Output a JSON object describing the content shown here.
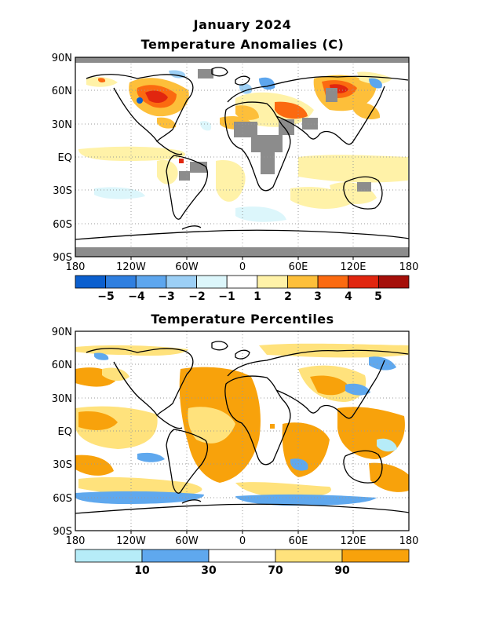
{
  "maps": [
    {
      "title_line1": "January 2024",
      "title_line2": "Temperature Anomalies (C)",
      "lat_labels": [
        "90N",
        "60N",
        "30N",
        "EQ",
        "30S",
        "60S",
        "90S"
      ],
      "lon_labels": [
        "180",
        "120W",
        "60W",
        "0",
        "60E",
        "120E",
        "180"
      ],
      "legend": {
        "colors": [
          "#0b5fce",
          "#2f7fe0",
          "#5da6ee",
          "#9ccff5",
          "#dcf6fb",
          "#ffffff",
          "#fff2a8",
          "#fdbf3a",
          "#fb6a10",
          "#e1260f",
          "#a50f0a"
        ],
        "labels": [
          "−5",
          "−4",
          "−3",
          "−2",
          "−1",
          "1",
          "2",
          "3",
          "4",
          "5"
        ]
      }
    },
    {
      "title_line1": "Temperature Percentiles",
      "lat_labels": [
        "90N",
        "60N",
        "30N",
        "EQ",
        "30S",
        "60S",
        "90S"
      ],
      "lon_labels": [
        "180",
        "120W",
        "60W",
        "0",
        "60E",
        "120E",
        "180"
      ],
      "legend": {
        "colors": [
          "#b6ecf8",
          "#5fa8ee",
          "#ffffff",
          "#ffe27c",
          "#f8a20b"
        ],
        "labels": [
          "10",
          "30",
          "70",
          "90"
        ]
      }
    }
  ]
}
